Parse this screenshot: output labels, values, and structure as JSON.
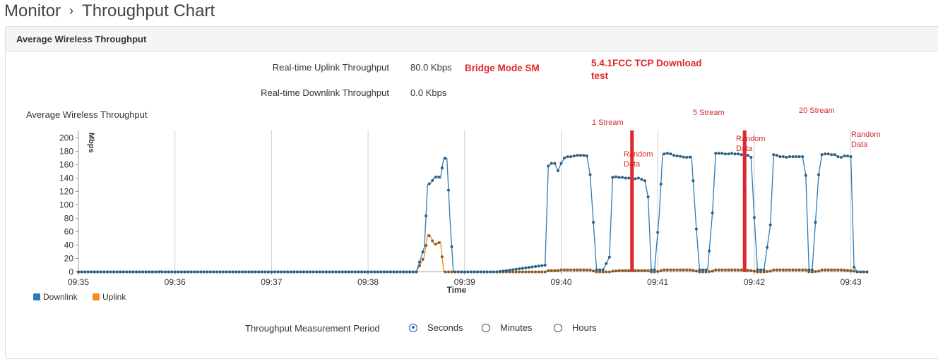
{
  "breadcrumb": {
    "root": "Monitor",
    "separator": "›",
    "page": "Throughput Chart"
  },
  "panel": {
    "title": "Average Wireless Throughput"
  },
  "realtime": {
    "uplink_label": "Real-time Uplink Throughput",
    "uplink_value": "80.0 Kbps",
    "downlink_label": "Real-time Downlink Throughput",
    "downlink_value": "0.0 Kbps"
  },
  "notes": {
    "bridge": "Bridge Mode SM",
    "test_line1": "5.4.1FCC TCP Download",
    "test_line2": "test",
    "stream1": "1 Stream",
    "stream5": "5 Stream",
    "stream20": "20 Stream",
    "random_a1": "Random",
    "random_a2": "Data",
    "random_b1": "Random",
    "random_b2": "Data",
    "random_c1": "Random",
    "random_c2": "Data"
  },
  "chart_title": "Average Wireless Throughput",
  "legend": {
    "downlink": "Downlink",
    "uplink": "Uplink"
  },
  "colors": {
    "downlink": "#2f5f80",
    "downlink_line": "#2b7bb9",
    "uplink": "#f28c1e",
    "marker": "#e0262b",
    "accent": "#1a5fb4"
  },
  "period": {
    "label": "Throughput Measurement Period",
    "options": [
      "Seconds",
      "Minutes",
      "Hours"
    ],
    "selected": "Seconds"
  },
  "chart_data": {
    "type": "line",
    "title": "Average Wireless Throughput",
    "xlabel": "Time",
    "ylabel": "Mbps",
    "ylim": [
      0,
      200
    ],
    "yticks": [
      0,
      20,
      40,
      60,
      80,
      100,
      120,
      140,
      160,
      180,
      200
    ],
    "xticks": [
      "09:35",
      "09:36",
      "09:37",
      "09:38",
      "09:39",
      "09:40",
      "09:41",
      "09:42",
      "09:43"
    ],
    "x_unit": "seconds after 09:35",
    "grid": "vertical",
    "legend_position": "bottom-left",
    "series": [
      {
        "name": "Downlink",
        "points": [
          [
            0,
            0
          ],
          [
            60,
            0
          ],
          [
            210,
            0
          ],
          [
            215,
            37
          ],
          [
            217,
            130
          ],
          [
            219,
            133
          ],
          [
            221,
            140
          ],
          [
            223,
            143
          ],
          [
            225,
            140
          ],
          [
            227,
            170
          ],
          [
            229,
            169
          ],
          [
            231,
            75
          ],
          [
            233,
            0
          ],
          [
            260,
            0
          ],
          [
            290,
            10
          ],
          [
            292,
            158
          ],
          [
            294,
            162
          ],
          [
            296,
            162
          ],
          [
            298,
            151
          ],
          [
            300,
            162
          ],
          [
            302,
            170
          ],
          [
            304,
            172
          ],
          [
            306,
            172
          ],
          [
            308,
            173
          ],
          [
            310,
            174
          ],
          [
            312,
            174
          ],
          [
            314,
            174
          ],
          [
            316,
            173
          ],
          [
            318,
            145
          ],
          [
            322,
            3
          ],
          [
            326,
            3
          ],
          [
            330,
            22
          ],
          [
            332,
            141
          ],
          [
            334,
            142
          ],
          [
            336,
            141
          ],
          [
            338,
            141
          ],
          [
            340,
            140
          ],
          [
            342,
            140
          ],
          [
            344,
            140
          ],
          [
            346,
            139
          ],
          [
            348,
            140
          ],
          [
            350,
            138
          ],
          [
            352,
            136
          ],
          [
            354,
            112
          ],
          [
            356,
            3
          ],
          [
            358,
            3
          ],
          [
            361,
            87
          ],
          [
            363,
            175
          ],
          [
            365,
            177
          ],
          [
            367,
            177
          ],
          [
            369,
            175
          ],
          [
            371,
            173
          ],
          [
            373,
            173
          ],
          [
            375,
            172
          ],
          [
            377,
            171
          ],
          [
            379,
            171
          ],
          [
            381,
            172
          ],
          [
            384,
            64
          ],
          [
            386,
            3
          ],
          [
            391,
            3
          ],
          [
            394,
            88
          ],
          [
            396,
            177
          ],
          [
            398,
            177
          ],
          [
            400,
            177
          ],
          [
            402,
            176
          ],
          [
            404,
            176
          ],
          [
            406,
            177
          ],
          [
            408,
            176
          ],
          [
            410,
            176
          ],
          [
            412,
            175
          ],
          [
            414,
            174
          ],
          [
            416,
            174
          ],
          [
            418,
            171
          ],
          [
            420,
            81
          ],
          [
            422,
            3
          ],
          [
            426,
            3
          ],
          [
            430,
            70
          ],
          [
            432,
            175
          ],
          [
            434,
            174
          ],
          [
            436,
            172
          ],
          [
            438,
            172
          ],
          [
            440,
            171
          ],
          [
            442,
            172
          ],
          [
            444,
            172
          ],
          [
            446,
            172
          ],
          [
            448,
            172
          ],
          [
            450,
            172
          ],
          [
            452,
            144
          ],
          [
            454,
            3
          ],
          [
            456,
            3
          ],
          [
            460,
            145
          ],
          [
            462,
            175
          ],
          [
            464,
            176
          ],
          [
            466,
            176
          ],
          [
            468,
            175
          ],
          [
            470,
            175
          ],
          [
            472,
            172
          ],
          [
            474,
            171
          ],
          [
            476,
            173
          ],
          [
            478,
            173
          ],
          [
            480,
            172
          ],
          [
            482,
            7
          ],
          [
            484,
            0
          ],
          [
            490,
            0
          ]
        ]
      },
      {
        "name": "Uplink",
        "points": [
          [
            0,
            0
          ],
          [
            50,
            0
          ],
          [
            51,
            2
          ],
          [
            52,
            0
          ],
          [
            210,
            0
          ],
          [
            215,
            23
          ],
          [
            217,
            56
          ],
          [
            219,
            52
          ],
          [
            221,
            41
          ],
          [
            223,
            42
          ],
          [
            225,
            45
          ],
          [
            227,
            0
          ],
          [
            230,
            0
          ],
          [
            290,
            0
          ],
          [
            292,
            2
          ],
          [
            295,
            2
          ],
          [
            298,
            2
          ],
          [
            300,
            3
          ],
          [
            305,
            3
          ],
          [
            310,
            3
          ],
          [
            315,
            3
          ],
          [
            318,
            3
          ],
          [
            322,
            0
          ],
          [
            330,
            0
          ],
          [
            332,
            1
          ],
          [
            336,
            2
          ],
          [
            340,
            2
          ],
          [
            345,
            2
          ],
          [
            350,
            2
          ],
          [
            354,
            2
          ],
          [
            356,
            0
          ],
          [
            358,
            0
          ],
          [
            361,
            1
          ],
          [
            363,
            3
          ],
          [
            367,
            3
          ],
          [
            372,
            3
          ],
          [
            377,
            3
          ],
          [
            381,
            3
          ],
          [
            386,
            0
          ],
          [
            391,
            0
          ],
          [
            394,
            1
          ],
          [
            396,
            3
          ],
          [
            400,
            3
          ],
          [
            405,
            3
          ],
          [
            410,
            3
          ],
          [
            414,
            3
          ],
          [
            418,
            2
          ],
          [
            420,
            1
          ],
          [
            422,
            0
          ],
          [
            426,
            0
          ],
          [
            430,
            1
          ],
          [
            432,
            3
          ],
          [
            436,
            3
          ],
          [
            440,
            3
          ],
          [
            445,
            3
          ],
          [
            450,
            3
          ],
          [
            452,
            3
          ],
          [
            454,
            0
          ],
          [
            456,
            0
          ],
          [
            460,
            1
          ],
          [
            462,
            3
          ],
          [
            466,
            3
          ],
          [
            470,
            3
          ],
          [
            475,
            3
          ],
          [
            480,
            2
          ],
          [
            484,
            0
          ],
          [
            490,
            0
          ]
        ]
      }
    ],
    "markers_x": [
      344,
      414
    ]
  }
}
